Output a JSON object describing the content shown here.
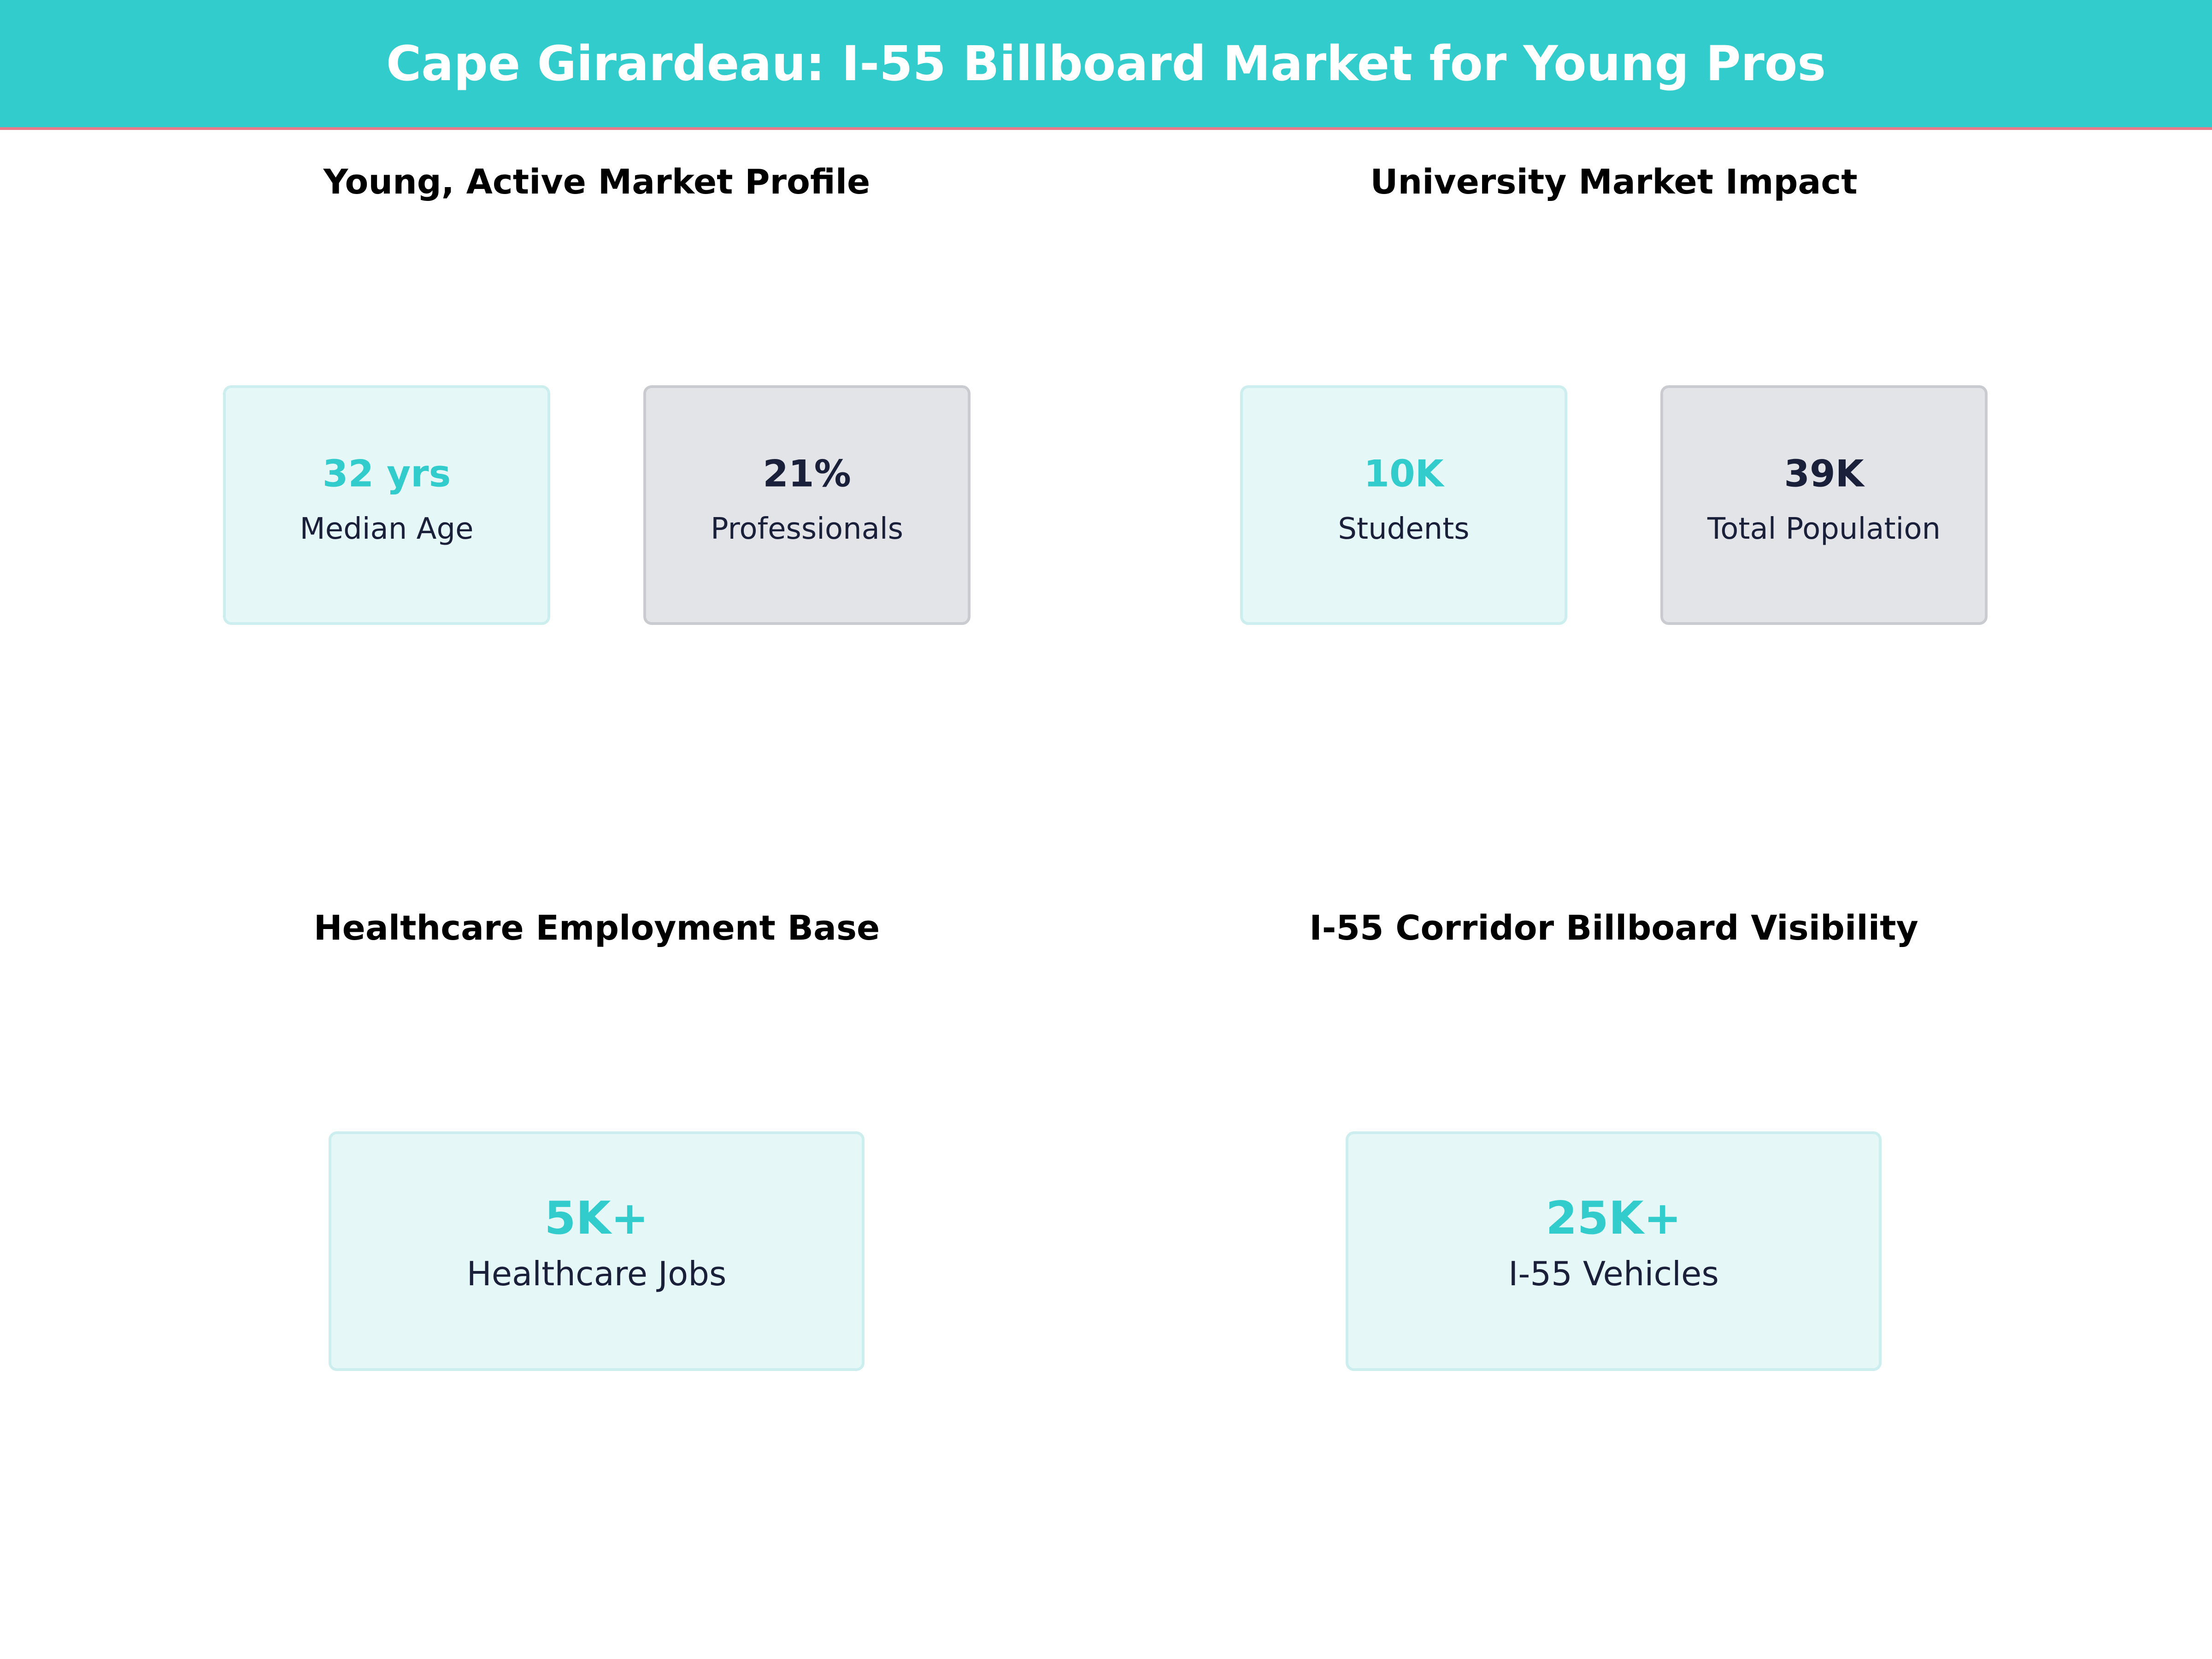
{
  "header": {
    "title": "Cape Girardeau: I-55 Billboard Market for Young Pros"
  },
  "panels": [
    {
      "title": "Young, Active Market Profile",
      "cards": [
        {
          "value": "32 yrs",
          "label": "Median Age"
        },
        {
          "value": "21%",
          "label": "Professionals"
        }
      ]
    },
    {
      "title": "University Market Impact",
      "cards": [
        {
          "value": "10K",
          "label": "Students"
        },
        {
          "value": "39K",
          "label": "Total Population"
        }
      ]
    },
    {
      "title": "Healthcare Employment Base",
      "cards": [
        {
          "value": "5K+",
          "label": "Healthcare Jobs"
        }
      ]
    },
    {
      "title": "I-55 Corridor Billboard Visibility",
      "cards": [
        {
          "value": "25K+",
          "label": "I-55 Vehicles"
        }
      ]
    }
  ]
}
